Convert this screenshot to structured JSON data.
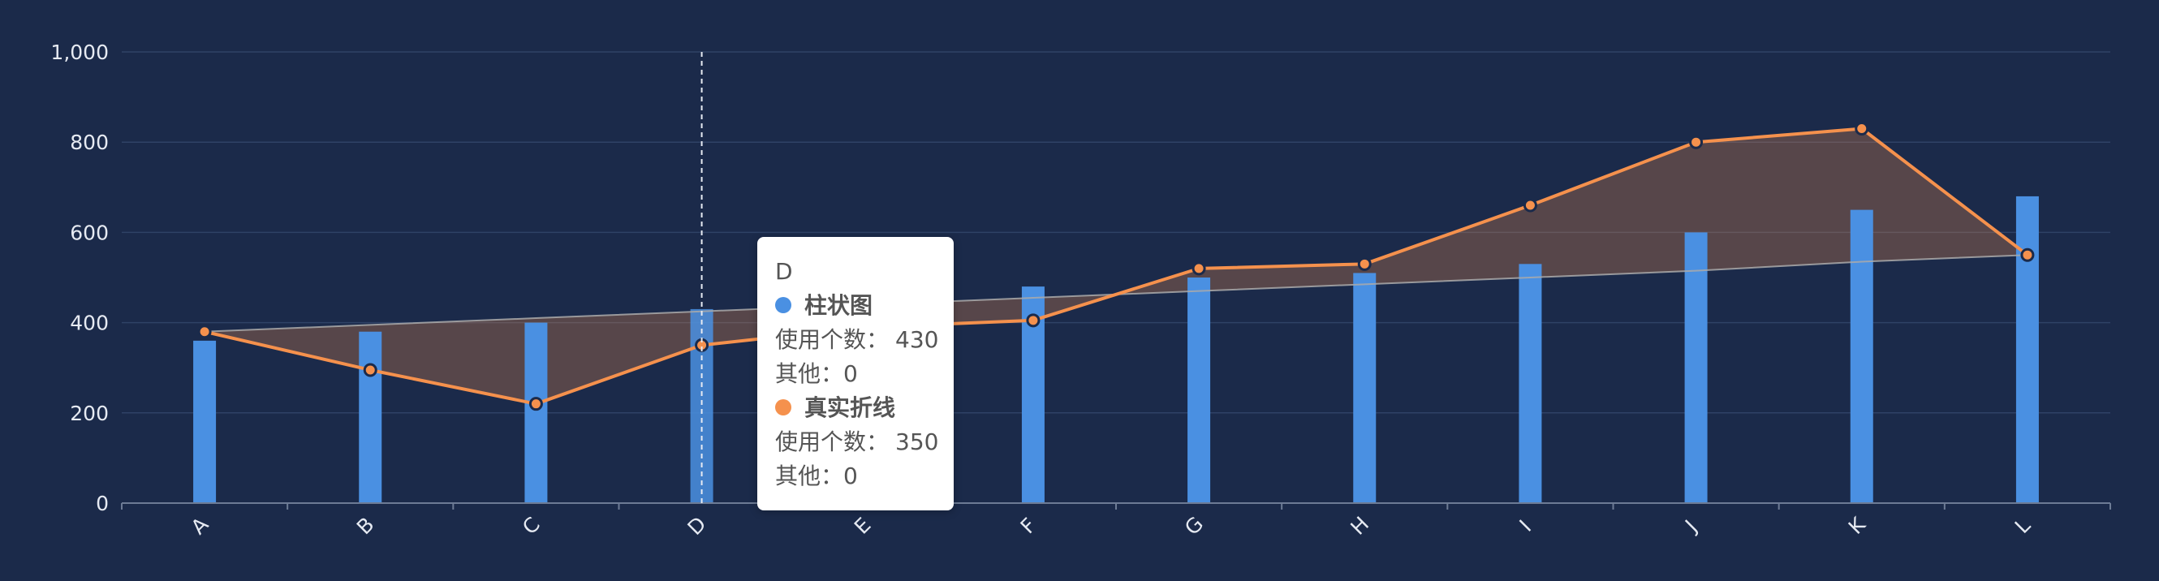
{
  "chart_data": {
    "type": "bar",
    "categories": [
      "A",
      "B",
      "C",
      "D",
      "E",
      "F",
      "G",
      "H",
      "I",
      "J",
      "K",
      "L"
    ],
    "ylim": [
      0,
      1000
    ],
    "y_ticks": [
      0,
      200,
      400,
      600,
      800,
      1000
    ],
    "y_tick_labels": [
      "0",
      "200",
      "400",
      "600",
      "800",
      "1,000"
    ],
    "grid": true,
    "series": [
      {
        "name": "柱状图",
        "type": "bar",
        "color": "#4a90e2",
        "values": [
          360,
          380,
          400,
          430,
          450,
          480,
          500,
          510,
          530,
          600,
          650,
          680
        ]
      },
      {
        "name": "真实折线",
        "type": "line",
        "color": "#f5914d",
        "values": [
          380,
          295,
          220,
          350,
          390,
          405,
          520,
          530,
          660,
          800,
          830,
          550
        ]
      },
      {
        "type": "line",
        "color": "#aaaaaa",
        "values": [
          380,
          395,
          410,
          425,
          440,
          455,
          470,
          485,
          500,
          515,
          535,
          550
        ]
      }
    ],
    "highlight_category": "D"
  },
  "tooltip": {
    "title": "D",
    "items": [
      {
        "color": "#4a90e2",
        "name": "柱状图",
        "lines": [
          {
            "label": "使用个数：",
            "value": "430"
          },
          {
            "label": "其他：",
            "value": "0"
          }
        ]
      },
      {
        "color": "#f5914d",
        "name": "真实折线",
        "lines": [
          {
            "label": "使用个数：",
            "value": "350"
          },
          {
            "label": "其他：",
            "value": "0"
          }
        ]
      }
    ]
  }
}
